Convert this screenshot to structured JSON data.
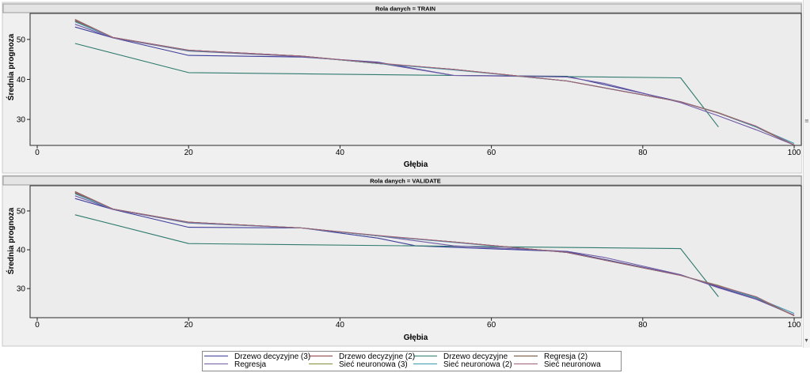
{
  "chart_data": [
    {
      "type": "line",
      "title": "Rola danych = TRAIN",
      "xlabel": "Głębia",
      "ylabel": "Średnia prognoza",
      "xlim": [
        0,
        100
      ],
      "ylim": [
        23.5,
        56.5
      ],
      "xticks": [
        0,
        20,
        40,
        60,
        80,
        100
      ],
      "yticks": [
        30,
        40,
        50
      ],
      "grid": false,
      "series": [
        {
          "name": "Drzewo decyzyjne (3)",
          "color": "#3d3d9a",
          "x": [
            5,
            10,
            20,
            35,
            45,
            55,
            70,
            85,
            90,
            95,
            100
          ],
          "y": [
            53.1,
            50.4,
            46.0,
            45.6,
            44.3,
            41.0,
            40.8,
            34.4,
            31.6,
            28.1,
            23.6
          ]
        },
        {
          "name": "Drzewo decyzyjne (2)",
          "color": "#8b3b3b",
          "x": [
            5,
            10,
            20,
            35,
            45,
            55,
            70,
            85,
            90,
            95,
            100
          ],
          "y": [
            54.6,
            50.5,
            47.3,
            45.8,
            44.0,
            42.5,
            39.6,
            34.4,
            31.6,
            28.1,
            23.6
          ]
        },
        {
          "name": "Drzewo decyzyjne",
          "color": "#2e7a6e",
          "x": [
            5,
            20,
            85,
            90
          ],
          "y": [
            49.0,
            41.7,
            40.4,
            28.1
          ]
        },
        {
          "name": "Regresja (2)",
          "color": "#6b4f3a",
          "x": [
            5,
            10,
            20,
            35,
            45,
            55,
            70,
            85,
            90,
            95,
            100
          ],
          "y": [
            55.0,
            50.5,
            47.3,
            45.8,
            44.0,
            42.5,
            39.6,
            34.4,
            31.6,
            28.1,
            23.6
          ]
        },
        {
          "name": "Regresja",
          "color": "#6f5aa6",
          "x": [
            5,
            10,
            20,
            35,
            45,
            55,
            70,
            75,
            85,
            90,
            95,
            100
          ],
          "y": [
            53.8,
            50.4,
            47.1,
            45.7,
            44.1,
            41.0,
            40.6,
            39.0,
            34.2,
            30.9,
            27.4,
            23.6
          ]
        },
        {
          "name": "Sieć neuronowa (3)",
          "color": "#7f8f3a",
          "x": [
            5,
            10,
            20,
            35,
            45,
            55,
            70,
            85,
            90,
            95,
            100
          ],
          "y": [
            54.8,
            50.5,
            47.2,
            45.8,
            44.0,
            42.5,
            39.6,
            34.4,
            31.7,
            28.2,
            23.6
          ]
        },
        {
          "name": "Sieć neuronowa (2)",
          "color": "#3a9ab0",
          "x": [
            5,
            10,
            20,
            35,
            45,
            55,
            70,
            85,
            90,
            95,
            100
          ],
          "y": [
            54.4,
            50.5,
            47.2,
            45.8,
            44.0,
            42.4,
            39.6,
            34.4,
            31.6,
            28.1,
            24.0
          ]
        },
        {
          "name": "Sieć neuronowa",
          "color": "#a0607a",
          "x": [
            5,
            10,
            20,
            35,
            45,
            55,
            70,
            85,
            90,
            95,
            100
          ],
          "y": [
            54.9,
            50.5,
            47.3,
            45.8,
            44.1,
            42.5,
            39.6,
            34.4,
            31.6,
            28.3,
            23.6
          ]
        }
      ]
    },
    {
      "type": "line",
      "title": "Rola danych = VALIDATE",
      "xlabel": "Głębia",
      "ylabel": "Średnia prognoza",
      "xlim": [
        0,
        100
      ],
      "ylim": [
        22.5,
        56.5
      ],
      "xticks": [
        0,
        20,
        40,
        60,
        80,
        100
      ],
      "yticks": [
        30,
        40,
        50
      ],
      "grid": false,
      "series": [
        {
          "name": "Drzewo decyzyjne (3)",
          "color": "#3d3d9a",
          "x": [
            5,
            10,
            20,
            35,
            45,
            50,
            70,
            85,
            90,
            95,
            100
          ],
          "y": [
            53.2,
            50.4,
            45.8,
            45.6,
            43.0,
            41.0,
            39.5,
            33.5,
            30.4,
            27.3,
            23.1
          ]
        },
        {
          "name": "Drzewo decyzyjne (2)",
          "color": "#8b3b3b",
          "x": [
            5,
            10,
            20,
            35,
            45,
            55,
            70,
            85,
            90,
            95,
            100
          ],
          "y": [
            54.6,
            50.5,
            47.1,
            45.6,
            43.6,
            42.0,
            39.3,
            33.4,
            30.7,
            27.6,
            23.0
          ]
        },
        {
          "name": "Drzewo decyzyjne",
          "color": "#2e7a6e",
          "x": [
            5,
            20,
            85,
            90
          ],
          "y": [
            49.0,
            41.6,
            40.3,
            27.9
          ]
        },
        {
          "name": "Regresja (2)",
          "color": "#6b4f3a",
          "x": [
            5,
            10,
            20,
            35,
            45,
            55,
            70,
            85,
            90,
            95,
            100
          ],
          "y": [
            55.0,
            50.5,
            47.1,
            45.6,
            43.6,
            42.0,
            39.3,
            33.4,
            30.7,
            27.6,
            23.0
          ]
        },
        {
          "name": "Regresja",
          "color": "#6f5aa6",
          "x": [
            5,
            10,
            20,
            35,
            45,
            55,
            70,
            75,
            85,
            90,
            95,
            100
          ],
          "y": [
            53.9,
            50.4,
            46.9,
            45.6,
            43.6,
            41.0,
            39.6,
            38.0,
            33.6,
            30.2,
            27.2,
            23.2
          ]
        },
        {
          "name": "Sieć neuronowa (3)",
          "color": "#7f8f3a",
          "x": [
            5,
            10,
            20,
            35,
            45,
            55,
            70,
            85,
            90,
            95,
            100
          ],
          "y": [
            54.8,
            50.5,
            47.1,
            45.6,
            43.6,
            42.0,
            39.3,
            33.4,
            30.8,
            27.7,
            23.0
          ]
        },
        {
          "name": "Sieć neuronowa (2)",
          "color": "#3a9ab0",
          "x": [
            5,
            10,
            20,
            35,
            45,
            55,
            70,
            85,
            90,
            95,
            100
          ],
          "y": [
            54.4,
            50.5,
            47.0,
            45.6,
            43.6,
            41.9,
            39.3,
            33.4,
            30.7,
            27.6,
            23.6
          ]
        },
        {
          "name": "Sieć neuronowa",
          "color": "#a0607a",
          "x": [
            5,
            10,
            20,
            35,
            45,
            55,
            70,
            85,
            90,
            95,
            100
          ],
          "y": [
            54.9,
            50.5,
            47.1,
            45.6,
            43.7,
            42.0,
            39.3,
            33.4,
            30.7,
            27.9,
            23.0
          ]
        }
      ]
    }
  ],
  "legend": {
    "items": [
      {
        "label": "Drzewo decyzyjne (3)",
        "color": "#3d3d9a"
      },
      {
        "label": "Drzewo decyzyjne (2)",
        "color": "#8b3b3b"
      },
      {
        "label": "Drzewo decyzyjne",
        "color": "#2e7a6e"
      },
      {
        "label": "Regresja (2)",
        "color": "#6b4f3a"
      },
      {
        "label": "Regresja",
        "color": "#6f5aa6"
      },
      {
        "label": "Sieć neuronowa (3)",
        "color": "#7f8f3a"
      },
      {
        "label": "Sieć neuronowa (2)",
        "color": "#3a9ab0"
      },
      {
        "label": "Sieć neuronowa",
        "color": "#a0607a"
      }
    ]
  },
  "scrollbar": {
    "grip_glyph": "≡",
    "down_arrow_glyph": "▾"
  }
}
